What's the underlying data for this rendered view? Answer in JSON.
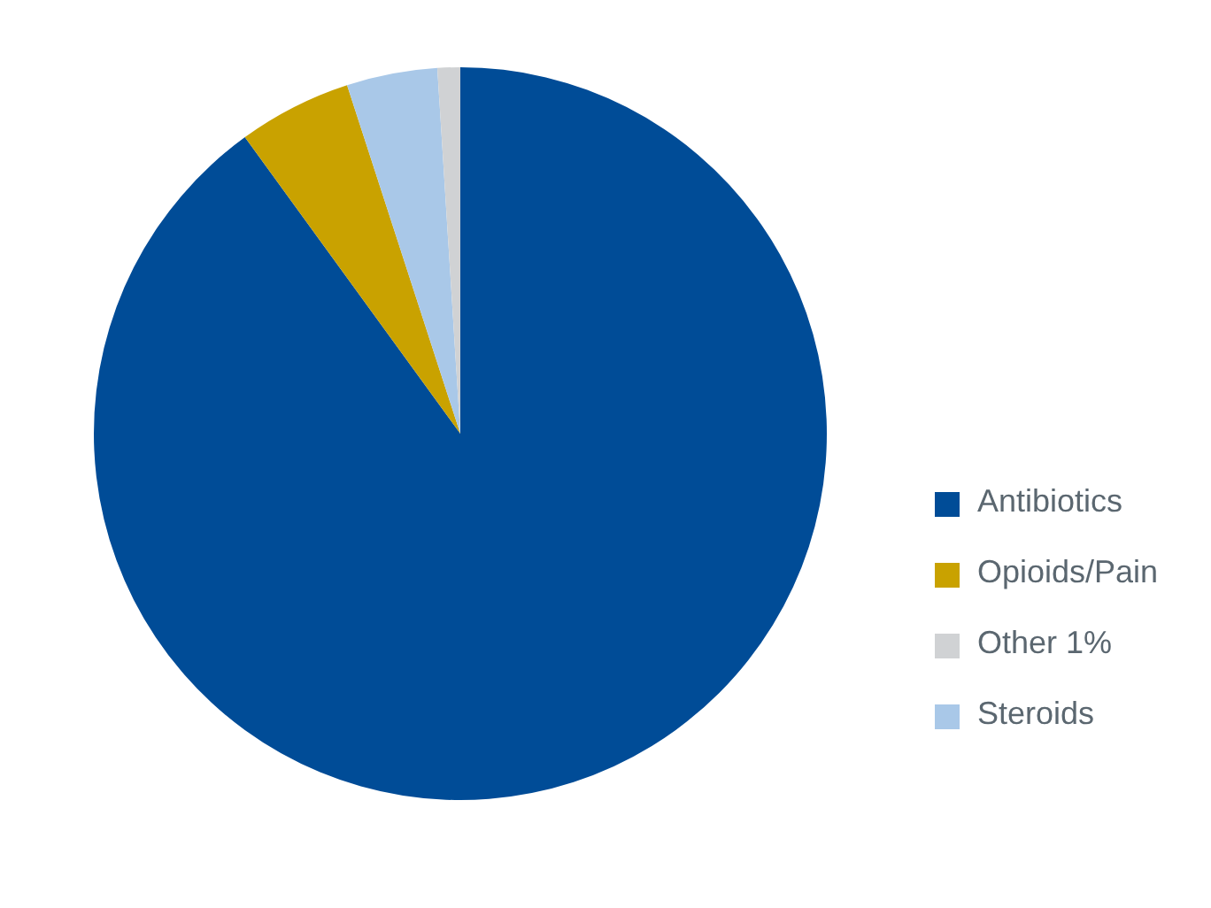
{
  "chart_data": {
    "type": "pie",
    "categories": [
      "Antibiotics",
      "Opioids/Pain",
      "Steroids",
      "Other 1%"
    ],
    "values": [
      90,
      5,
      4,
      1
    ],
    "colors": [
      "#004c97",
      "#c9a200",
      "#a9c8e8",
      "#d0d2d4"
    ],
    "legend": "right"
  }
}
